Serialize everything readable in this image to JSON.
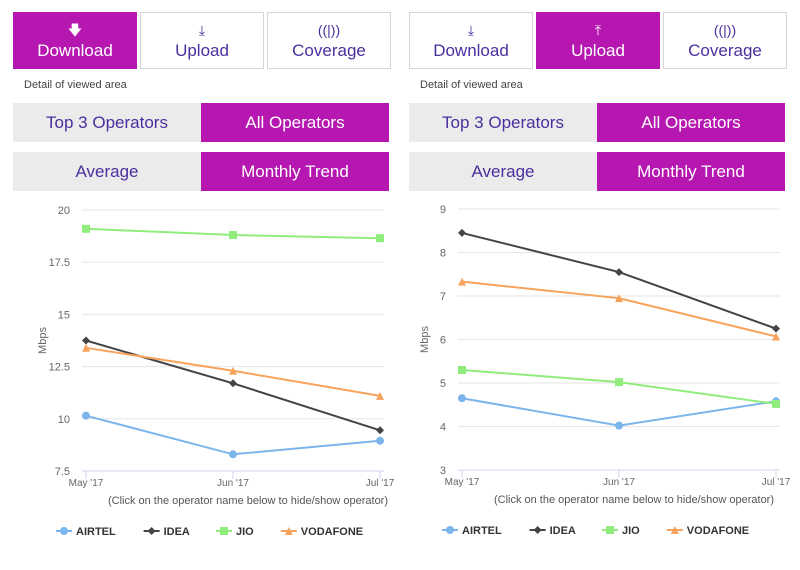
{
  "panels": [
    {
      "tabs": [
        {
          "label": "Download",
          "icon": "download-icon",
          "active": true
        },
        {
          "label": "Upload",
          "icon": "upload-icon",
          "active": false
        },
        {
          "label": "Coverage",
          "icon": "signal-icon",
          "active": false
        }
      ],
      "detail": "Detail of viewed area",
      "scope": {
        "options": [
          "Top 3 Operators",
          "All Operators"
        ],
        "active": 1
      },
      "view": {
        "options": [
          "Average",
          "Monthly Trend"
        ],
        "active": 1
      }
    },
    {
      "tabs": [
        {
          "label": "Download",
          "icon": "download-icon",
          "active": false
        },
        {
          "label": "Upload",
          "icon": "upload-icon",
          "active": true
        },
        {
          "label": "Coverage",
          "icon": "signal-icon",
          "active": false
        }
      ],
      "detail": "Detail of viewed area",
      "scope": {
        "options": [
          "Top 3 Operators",
          "All Operators"
        ],
        "active": 1
      },
      "view": {
        "options": [
          "Average",
          "Monthly Trend"
        ],
        "active": 1
      }
    }
  ],
  "colors": {
    "accent": "#b517b0",
    "text": "#4a2f9e",
    "AIRTEL": "#7cb5ec",
    "IDEA": "#434348",
    "JIO": "#90ed7d",
    "VODAFONE": "#f7a35c"
  },
  "chart_data": [
    {
      "type": "line",
      "ylabel": "Mbps",
      "categories": [
        "May '17",
        "Jun '17",
        "Jul '17"
      ],
      "ylim": [
        7.5,
        20
      ],
      "yticks": [
        "7.5",
        "10",
        "12.5",
        "15",
        "17.5",
        "20"
      ],
      "grid": true,
      "legend": "bottom",
      "note": "(Click on the operator name below to hide/show operator)",
      "series": [
        {
          "name": "AIRTEL",
          "marker": "circle",
          "values": [
            10.15,
            8.3,
            8.95
          ]
        },
        {
          "name": "IDEA",
          "marker": "diamond",
          "values": [
            13.75,
            11.7,
            9.45
          ]
        },
        {
          "name": "JIO",
          "marker": "square",
          "values": [
            19.1,
            18.8,
            18.65
          ]
        },
        {
          "name": "VODAFONE",
          "marker": "triangle",
          "values": [
            13.4,
            12.3,
            11.1
          ]
        }
      ]
    },
    {
      "type": "line",
      "ylabel": "Mbps",
      "categories": [
        "May '17",
        "Jun '17",
        "Jul '17"
      ],
      "ylim": [
        3,
        9
      ],
      "yticks": [
        "3",
        "4",
        "5",
        "6",
        "7",
        "8",
        "9"
      ],
      "grid": true,
      "legend": "bottom",
      "note": "(Click on the operator name below to hide/show operator)",
      "series": [
        {
          "name": "AIRTEL",
          "marker": "circle",
          "values": [
            4.65,
            4.02,
            4.58
          ]
        },
        {
          "name": "IDEA",
          "marker": "diamond",
          "values": [
            8.45,
            7.55,
            6.25
          ]
        },
        {
          "name": "JIO",
          "marker": "square",
          "values": [
            5.3,
            5.02,
            4.52
          ]
        },
        {
          "name": "VODAFONE",
          "marker": "triangle",
          "values": [
            7.33,
            6.95,
            6.07
          ]
        }
      ]
    }
  ]
}
